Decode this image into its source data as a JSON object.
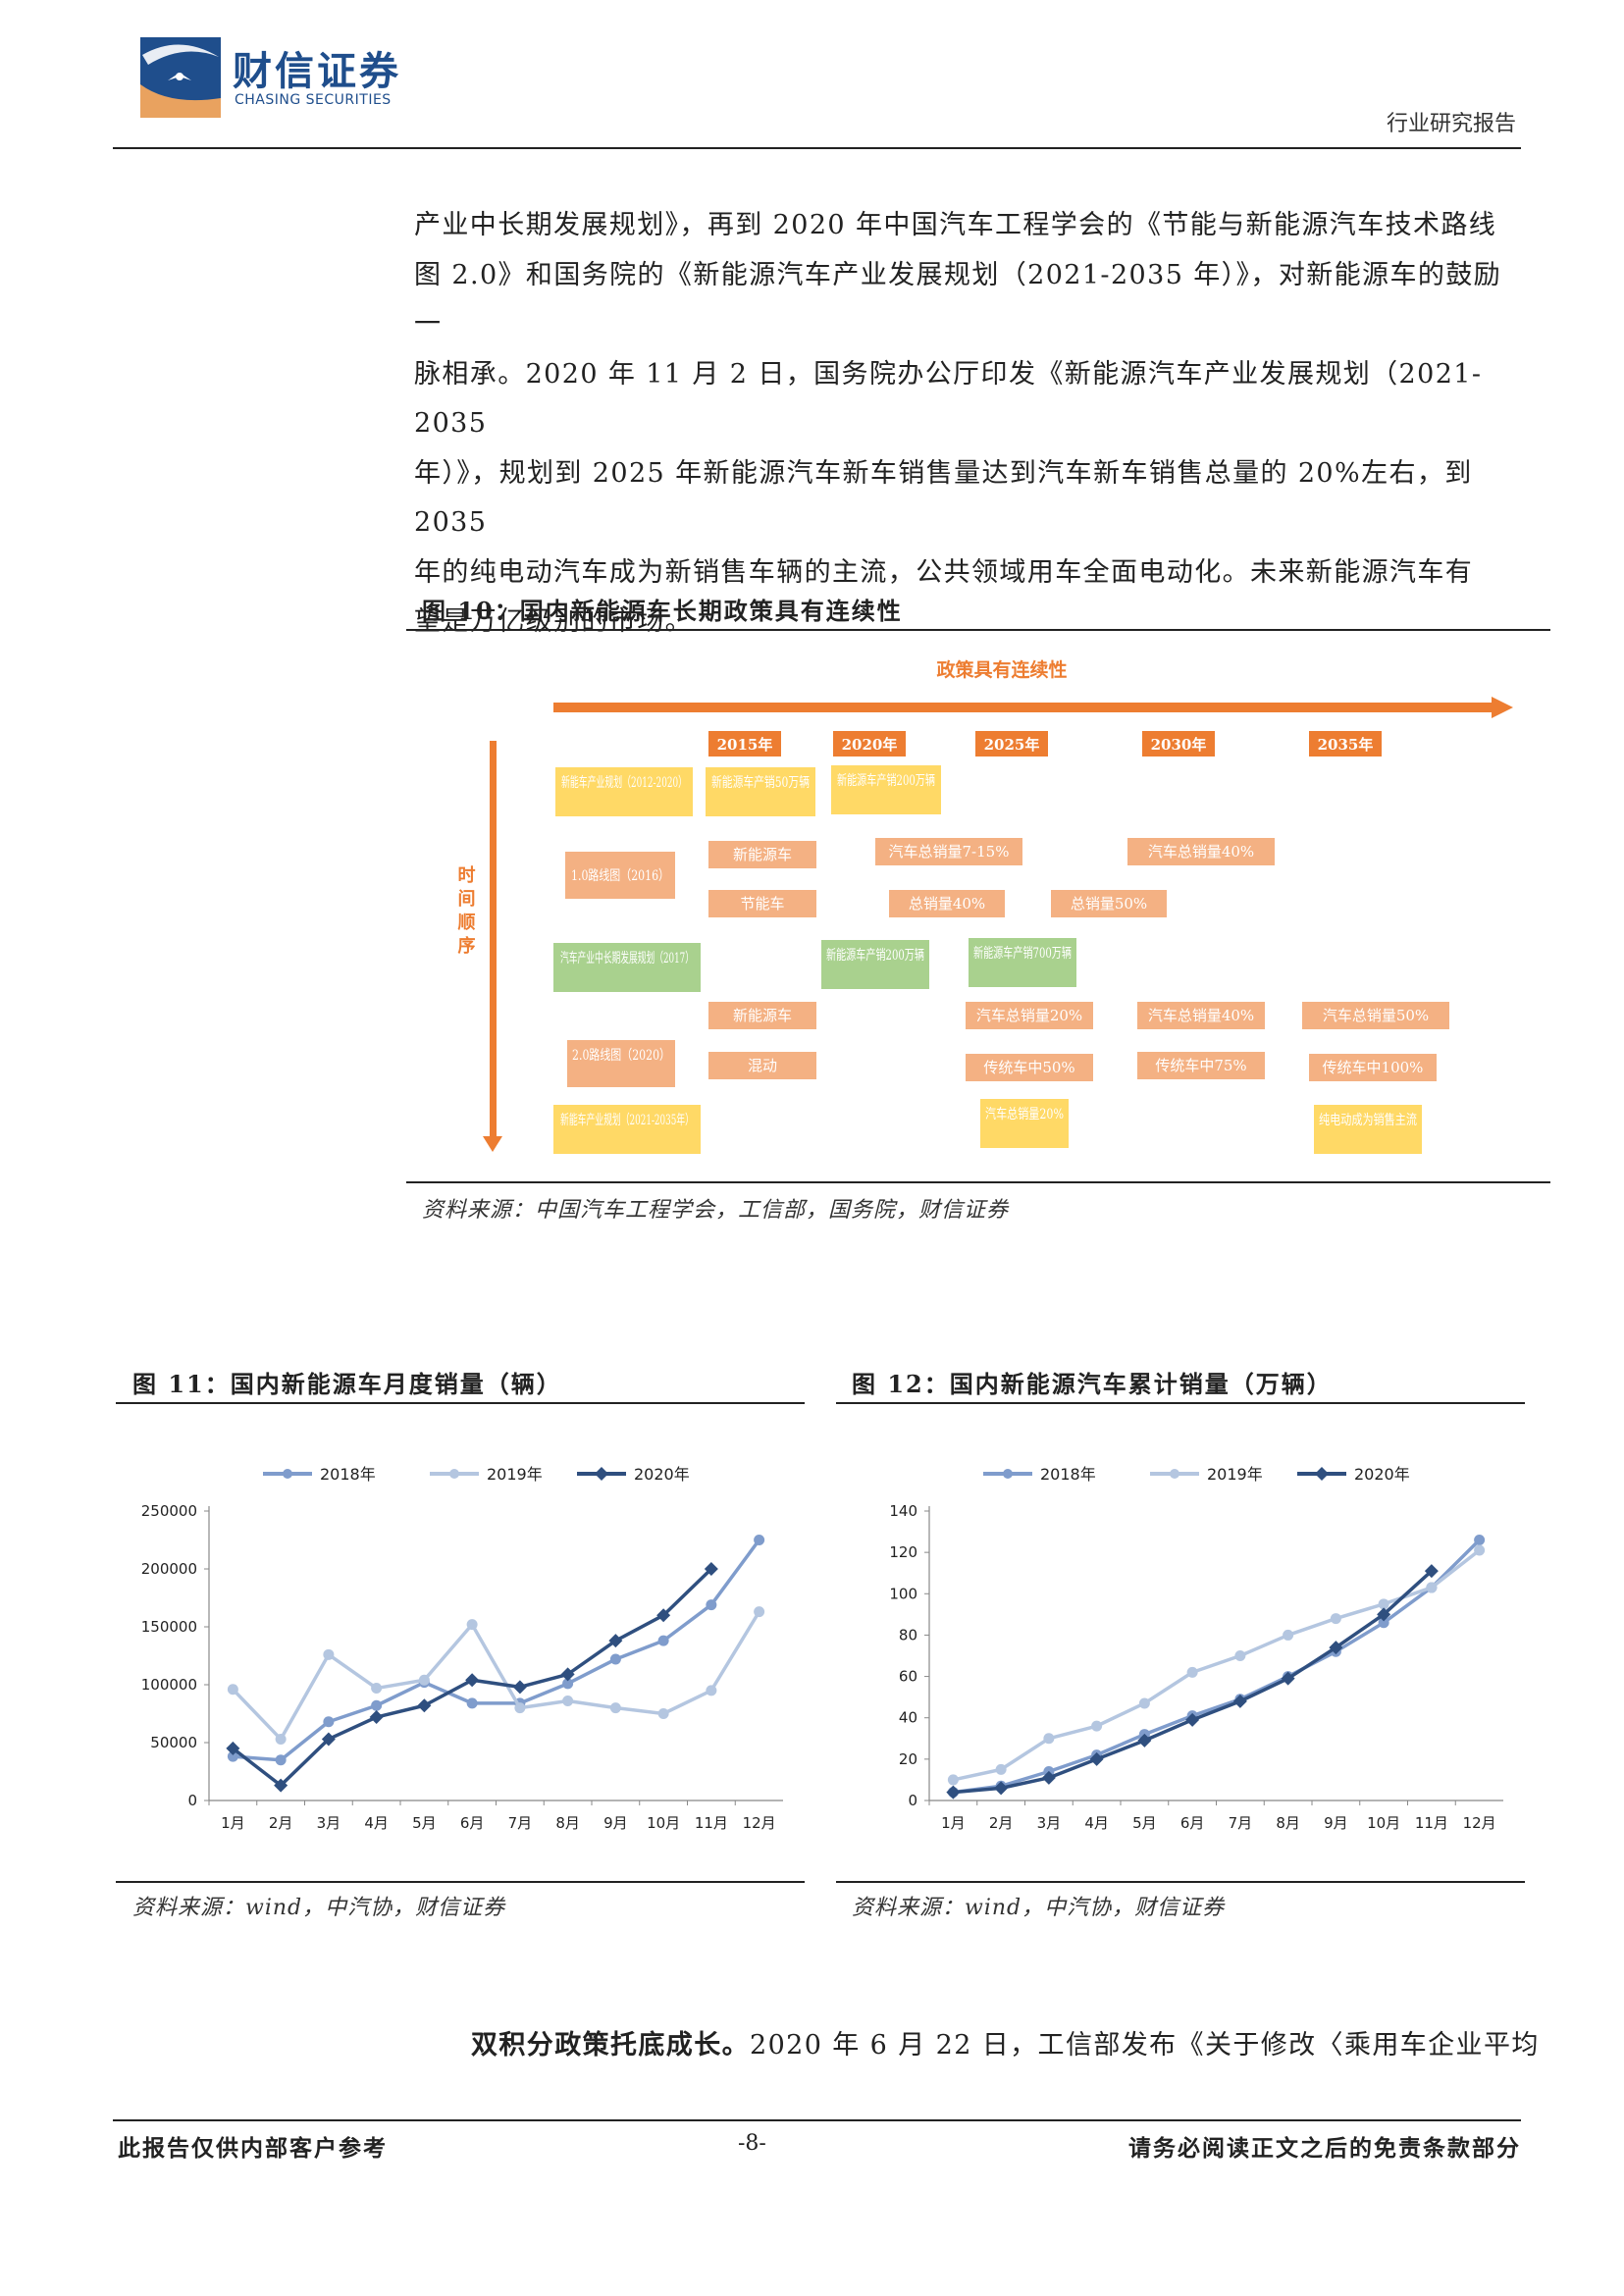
{
  "header": {
    "brand_cn": "财信证券",
    "brand_en": "CHASING SECURITIES",
    "doc_type": "行业研究报告"
  },
  "body": {
    "lines": [
      "产业中长期发展规划》，再到 2020 年中国汽车工程学会的《节能与新能源汽车技术路线",
      "图 2.0》和国务院的《新能源汽车产业发展规划（2021-2035 年）》，对新能源车的鼓励一",
      "脉相承。2020 年 11 月 2 日，国务院办公厅印发《新能源汽车产业发展规划（2021-2035",
      "年）》，规划到 2025 年新能源汽车新车销售量达到汽车新车销售总量的 20%左右，到 2035",
      "年的纯电动汽车成为新销售车辆的主流，公共领域用车全面电动化。未来新能源汽车有",
      "望是万亿级别的市场。"
    ],
    "closing_bold": "双积分政策托底成长。",
    "closing_text": "2020 年 6 月 22 日，工信部发布《关于修改〈乘用车企业平均"
  },
  "figure10": {
    "title": "图 10：国内新能源车长期政策具有连续性",
    "top_arrow_label": "政策具有连续性",
    "side_arrow_label": "时间顺序",
    "years": [
      "2015年",
      "2020年",
      "2025年",
      "2030年",
      "2035年"
    ],
    "policies": [
      "新能车产业规划（2012-2020）",
      "1.0路线图（2016）",
      "汽车产业中长期发展规划（2017）",
      "2.0路线图（2020）",
      "新能车产业规划（2021-2035年）"
    ],
    "targets": {
      "r1_2015": "新能源车产销50万辆",
      "r1_2020": "新能源车产销200万辆",
      "r2_nev": "新能源车",
      "r2_nev_2025": "汽车总销量7-15%",
      "r2_nev_2030": "汽车总销量40%",
      "r2_eco": "节能车",
      "r2_eco_2025": "总销量40%",
      "r2_eco_2030": "总销量50%",
      "r3_2020": "新能源车产销200万辆",
      "r3_2025": "新能源车产销700万辆",
      "r4_nev": "新能源车",
      "r4_nev_2025": "汽车总销量20%",
      "r4_nev_2030": "汽车总销量40%",
      "r4_nev_2035": "汽车总销量50%",
      "r4_hyb": "混动",
      "r4_hyb_2025": "传统车中50%",
      "r4_hyb_2030": "传统车中75%",
      "r4_hyb_2035": "传统车中100%",
      "r5_2025": "汽车总销量20%",
      "r5_2035": "纯电动成为销售主流"
    },
    "colors": {
      "orange": "#ed7d31",
      "light_orange": "#f4b183",
      "yellow": "#ffd966",
      "green": "#a9d18e",
      "text_on_light": "#ffffff"
    },
    "source": "资料来源：中国汽车工程学会，工信部，国务院，财信证券"
  },
  "figure11": {
    "title": "图 11：国内新能源车月度销量（辆）",
    "source": "资料来源：wind，中汽协，财信证券"
  },
  "figure12": {
    "title": "图 12：国内新能源汽车累计销量（万辆）",
    "source": "资料来源：wind，中汽协，财信证券"
  },
  "chart_data": [
    {
      "type": "line",
      "categories": [
        "1月",
        "2月",
        "3月",
        "4月",
        "5月",
        "6月",
        "7月",
        "8月",
        "9月",
        "10月",
        "11月",
        "12月"
      ],
      "ylim": [
        0,
        250000
      ],
      "yticks": [
        0,
        50000,
        100000,
        150000,
        200000,
        250000
      ],
      "grid": false,
      "legend": "top",
      "series": [
        {
          "name": "2018年",
          "color": "#7f9ccc",
          "marker": "circle",
          "values": [
            38000,
            35000,
            68000,
            82000,
            102000,
            84000,
            84000,
            101000,
            122000,
            138000,
            169000,
            225000
          ]
        },
        {
          "name": "2019年",
          "color": "#b4c6e0",
          "marker": "circle",
          "values": [
            96000,
            53000,
            126000,
            97000,
            104000,
            152000,
            80000,
            86000,
            80000,
            75000,
            95000,
            163000
          ]
        },
        {
          "name": "2020年",
          "color": "#2f4f7f",
          "marker": "diamond",
          "values": [
            45000,
            13000,
            53000,
            72000,
            82000,
            104000,
            98000,
            109000,
            138000,
            160000,
            200000,
            null
          ]
        }
      ]
    },
    {
      "type": "line",
      "categories": [
        "1月",
        "2月",
        "3月",
        "4月",
        "5月",
        "6月",
        "7月",
        "8月",
        "9月",
        "10月",
        "11月",
        "12月"
      ],
      "ylim": [
        0,
        140
      ],
      "yticks": [
        0,
        20,
        40,
        60,
        80,
        100,
        120,
        140
      ],
      "grid": false,
      "legend": "top",
      "series": [
        {
          "name": "2018年",
          "color": "#7f9ccc",
          "marker": "circle",
          "values": [
            4,
            7,
            14,
            22,
            32,
            41,
            49,
            60,
            72,
            86,
            103,
            126
          ]
        },
        {
          "name": "2019年",
          "color": "#b4c6e0",
          "marker": "circle",
          "values": [
            10,
            15,
            30,
            36,
            47,
            62,
            70,
            80,
            88,
            95,
            103,
            121
          ]
        },
        {
          "name": "2020年",
          "color": "#2f4f7f",
          "marker": "diamond",
          "values": [
            4,
            6,
            11,
            20,
            29,
            39,
            48,
            59,
            74,
            90,
            111,
            null
          ]
        }
      ]
    }
  ],
  "footer": {
    "left": "此报告仅供内部客户参考",
    "page": "-8-",
    "right": "请务必阅读正文之后的免责条款部分"
  }
}
